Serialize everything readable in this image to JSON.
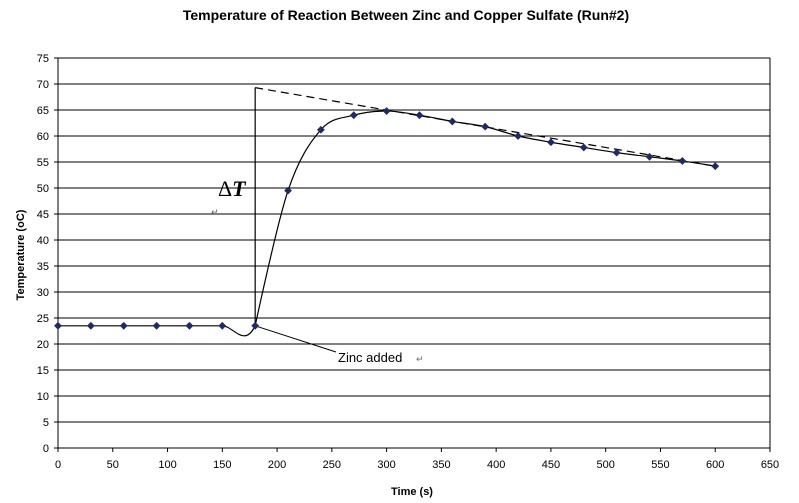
{
  "chart_data": {
    "type": "scatter",
    "title": "Temperature of Reaction Between Zinc and Copper Sulfate (Run#2)",
    "xlabel": "Time (s)",
    "ylabel": "Temperature (oC)",
    "xlim": [
      0,
      650
    ],
    "ylim": [
      0,
      75
    ],
    "x_ticks": [
      0,
      50,
      100,
      150,
      200,
      250,
      300,
      350,
      400,
      450,
      500,
      550,
      600,
      650
    ],
    "y_ticks": [
      0,
      5,
      10,
      15,
      20,
      25,
      30,
      35,
      40,
      45,
      50,
      55,
      60,
      65,
      70,
      75
    ],
    "grid": "horizontal",
    "series": [
      {
        "x": [
          0,
          30,
          60,
          90,
          120,
          150,
          180,
          210,
          240,
          270,
          300,
          330,
          360,
          390,
          420,
          450,
          480,
          510,
          540,
          570,
          600
        ],
        "y": [
          23.5,
          23.5,
          23.5,
          23.5,
          23.5,
          23.5,
          23.5,
          49.5,
          61.2,
          64,
          64.8,
          64,
          62.8,
          61.8,
          60,
          58.8,
          57.8,
          56.8,
          56,
          55.2,
          54.2
        ],
        "color": "#1f2a6b"
      }
    ],
    "extrapolation_line": {
      "x": [
        180,
        600
      ],
      "y": [
        69.3,
        54.2
      ],
      "style": "dashed"
    },
    "vertical_marker": {
      "x": 180,
      "y": [
        23.5,
        69.3
      ]
    },
    "annotations": {
      "delta_symbol": "Δ",
      "delta_var": "T",
      "zinc_added": "Zinc added",
      "return_mark": "↵"
    }
  }
}
